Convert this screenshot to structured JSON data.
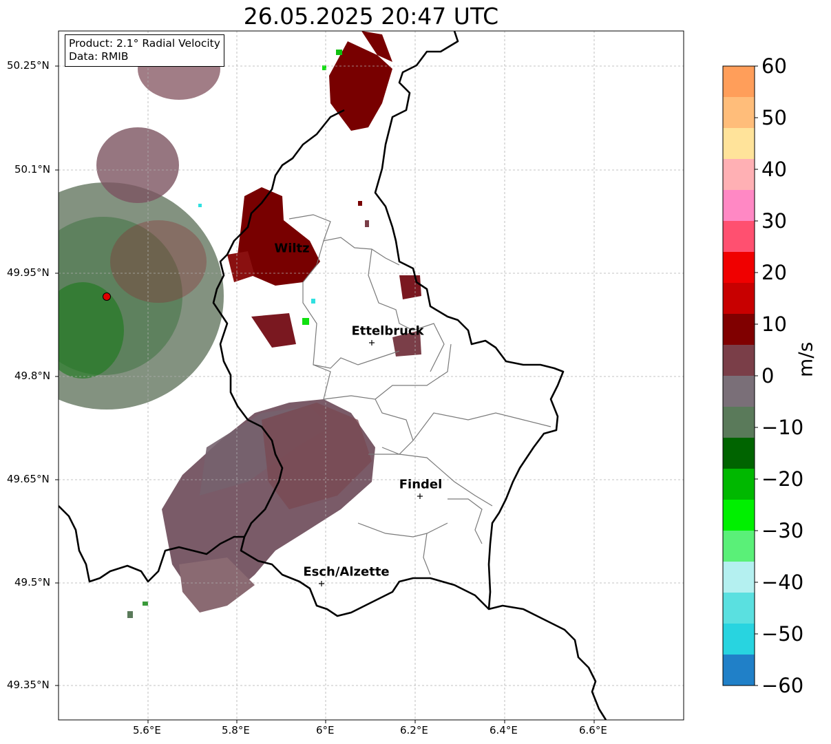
{
  "title": "26.05.2025 20:47 UTC",
  "info_box": {
    "product": "Product: 2.1° Radial Velocity",
    "data": "Data: RMIB"
  },
  "map": {
    "lon_range": [
      5.4,
      6.79
    ],
    "lat_range": [
      49.3,
      50.28
    ],
    "lon_ticks": [
      "5.6°E",
      "5.8°E",
      "6°E",
      "6.2°E",
      "6.4°E",
      "6.6°E"
    ],
    "lat_ticks": [
      "50.25°N",
      "50.1°N",
      "49.95°N",
      "49.8°N",
      "49.65°N",
      "49.5°N",
      "49.35°N"
    ],
    "grid": true,
    "radar_site_color": "#e00000",
    "cities": [
      {
        "name": "Wiltz"
      },
      {
        "name": "Ettelbruck"
      },
      {
        "name": "Findel"
      },
      {
        "name": "Esch/Alzette"
      }
    ]
  },
  "colorbar": {
    "label": "m/s",
    "min": -60,
    "max": 60,
    "ticks": [
      "60",
      "50",
      "40",
      "30",
      "20",
      "10",
      "0",
      "−10",
      "−20",
      "−30",
      "−40",
      "−50",
      "−60"
    ],
    "colors": [
      "#ff9e5a",
      "#ffbd7a",
      "#ffe39a",
      "#ffb0b4",
      "#ff88c4",
      "#ff5070",
      "#f00000",
      "#c80000",
      "#800000",
      "#7a3e48",
      "#7a6f78",
      "#5a7a5a",
      "#006400",
      "#00b800",
      "#00f000",
      "#5af078",
      "#b4f0f0",
      "#5ae0e0",
      "#28d4e0",
      "#2080c8"
    ]
  }
}
